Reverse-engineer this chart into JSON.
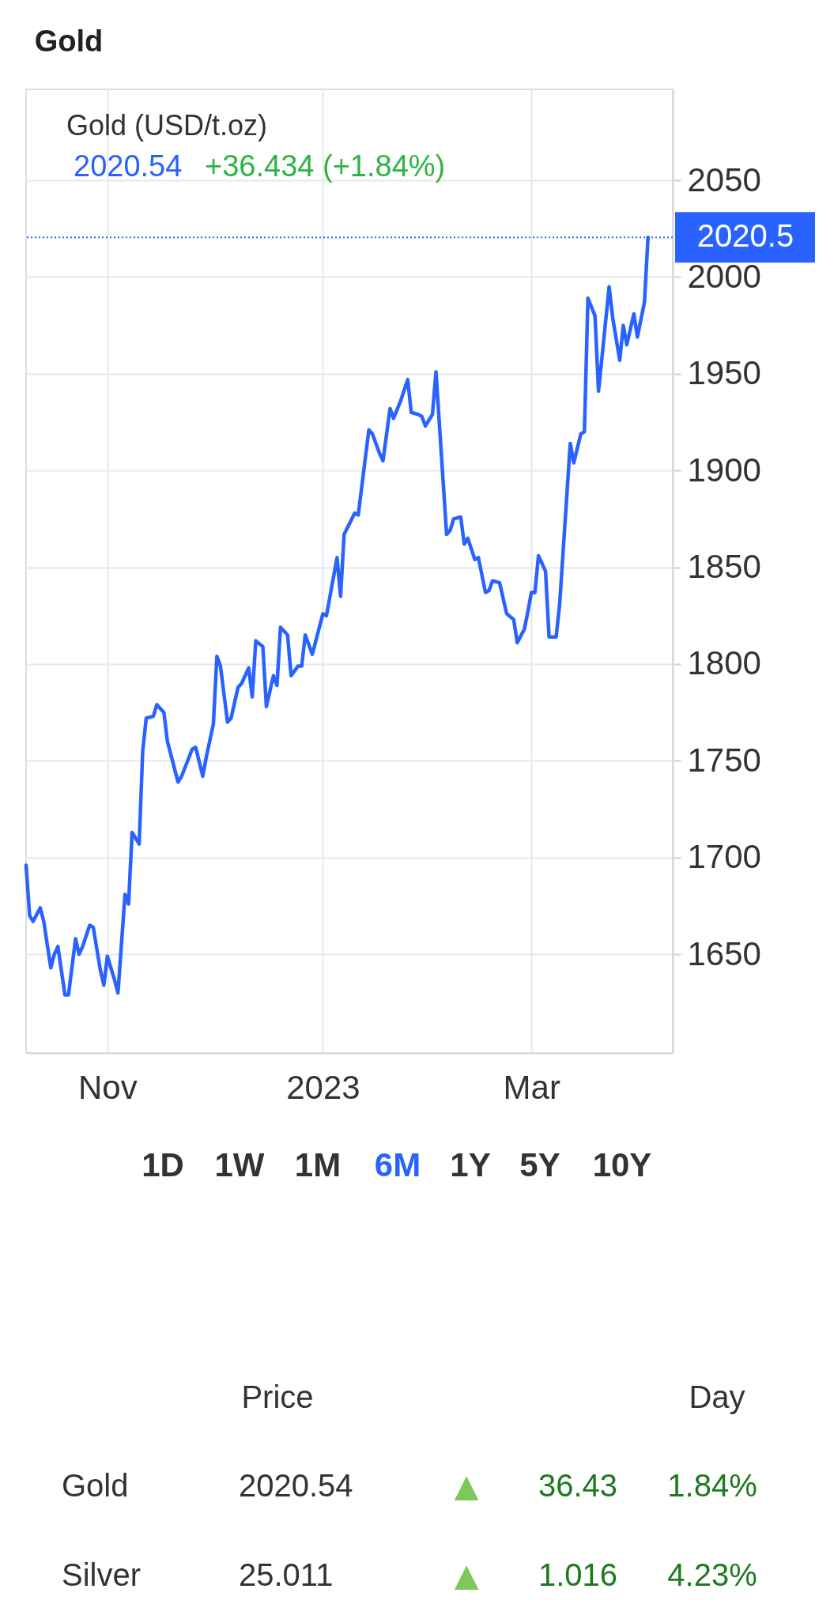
{
  "chart_data": {
    "type": "line",
    "title": "Gold",
    "subtitle": "Gold (USD/t.oz)",
    "annotations": [
      "2020.54",
      "+36.434 (+1.84%)",
      "1D",
      "1W",
      "1M",
      "6M",
      "1Y",
      "5Y",
      "10Y",
      "Price",
      "Day",
      "Gold",
      "2020.54",
      "▲",
      "36.43",
      "1.84%",
      "Silver",
      "25.011",
      "▲",
      "1.016",
      "4.23%"
    ],
    "x": [
      "2022-10-09",
      "2022-10-10",
      "2022-10-11",
      "2022-10-13",
      "2022-10-14",
      "2022-10-16",
      "2022-10-17",
      "2022-10-18",
      "2022-10-20",
      "2022-10-21",
      "2022-10-23",
      "2022-10-24",
      "2022-10-25",
      "2022-10-27",
      "2022-10-28",
      "2022-10-30",
      "2022-10-31",
      "2022-11-01",
      "2022-11-03",
      "2022-11-04",
      "2022-11-06",
      "2022-11-07",
      "2022-11-08",
      "2022-11-10",
      "2022-11-11",
      "2022-11-12",
      "2022-11-14",
      "2022-11-15",
      "2022-11-17",
      "2022-11-18",
      "2022-11-21",
      "2022-11-22",
      "2022-11-25",
      "2022-11-26",
      "2022-11-28",
      "2022-11-29",
      "2022-12-01",
      "2022-12-02",
      "2022-12-03",
      "2022-12-05",
      "2022-12-06",
      "2022-12-08",
      "2022-12-09",
      "2022-12-11",
      "2022-12-12",
      "2022-12-13",
      "2022-12-15",
      "2022-12-16",
      "2022-12-18",
      "2022-12-19",
      "2022-12-20",
      "2022-12-22",
      "2022-12-23",
      "2022-12-25",
      "2022-12-26",
      "2022-12-27",
      "2022-12-29",
      "2023-01-01",
      "2023-01-02",
      "2023-01-05",
      "2023-01-06",
      "2023-01-07",
      "2023-01-10",
      "2023-01-11",
      "2023-01-14",
      "2023-01-15",
      "2023-01-17",
      "2023-01-18",
      "2023-01-20",
      "2023-01-21",
      "2023-01-23",
      "2023-01-25",
      "2023-01-26",
      "2023-01-28",
      "2023-01-29",
      "2023-01-30",
      "2023-02-01",
      "2023-02-02",
      "2023-02-03",
      "2023-02-05",
      "2023-02-06",
      "2023-02-07",
      "2023-02-09",
      "2023-02-10",
      "2023-02-11",
      "2023-02-13",
      "2023-02-14",
      "2023-02-16",
      "2023-02-17",
      "2023-02-18",
      "2023-02-20",
      "2023-02-21",
      "2023-02-22",
      "2023-02-24",
      "2023-02-25",
      "2023-02-27",
      "2023-02-28",
      "2023-03-01",
      "2023-03-02",
      "2023-03-03",
      "2023-03-05",
      "2023-03-06",
      "2023-03-08",
      "2023-03-09",
      "2023-03-12",
      "2023-03-13",
      "2023-03-15",
      "2023-03-16",
      "2023-03-17",
      "2023-03-19",
      "2023-03-20",
      "2023-03-23",
      "2023-03-24",
      "2023-03-26",
      "2023-03-27",
      "2023-03-28",
      "2023-03-30",
      "2023-03-31",
      "2023-04-02",
      "2023-04-03"
    ],
    "series": [
      {
        "color": "#2962ff",
        "values": [
          1696,
          1670,
          1667,
          1674,
          1667,
          1643,
          1650,
          1654,
          1629,
          1629,
          1658,
          1650,
          1654,
          1665,
          1664,
          1642,
          1634,
          1649,
          1637,
          1630,
          1681,
          1676,
          1713,
          1707,
          1755,
          1772,
          1773,
          1779,
          1775,
          1760,
          1739,
          1742,
          1756,
          1757,
          1742,
          1752,
          1769,
          1804,
          1799,
          1770,
          1772,
          1788,
          1790,
          1798,
          1783,
          1812,
          1809,
          1778,
          1794,
          1789,
          1819,
          1815,
          1794,
          1799,
          1799,
          1815,
          1805,
          1826,
          1825,
          1855,
          1835,
          1867,
          1878,
          1877,
          1921,
          1919,
          1909,
          1905,
          1932,
          1927,
          1936,
          1947,
          1930,
          1929,
          1928,
          1923,
          1929,
          1951,
          1923,
          1867,
          1869,
          1875,
          1876,
          1862,
          1865,
          1854,
          1855,
          1837,
          1838,
          1843,
          1842,
          1834,
          1826,
          1823,
          1811,
          1818,
          1827,
          1837,
          1837,
          1856,
          1848,
          1814,
          1814,
          1831,
          1914,
          1904,
          1919,
          1920,
          1989,
          1980,
          1941,
          1995,
          1979,
          1957,
          1975,
          1965,
          1981,
          1969,
          1987,
          2020.5
        ]
      }
    ],
    "xlim": [
      "2022-10-09",
      "2023-04-10"
    ],
    "xticks": [
      {
        "value": "2022-11-01",
        "label": "Nov"
      },
      {
        "value": "2023-01-01",
        "label": "2023"
      },
      {
        "value": "2023-03-01",
        "label": "Mar"
      }
    ],
    "ylim": [
      1599,
      2097
    ],
    "yticks": [
      1650,
      1700,
      1750,
      1800,
      1850,
      1900,
      1950,
      2000,
      2050
    ],
    "grid": true,
    "ref_lines": [
      {
        "axis": "y",
        "value": 2020.5,
        "label": "2020.5",
        "color": "#2962ff",
        "line_style": "dotted"
      }
    ]
  }
}
